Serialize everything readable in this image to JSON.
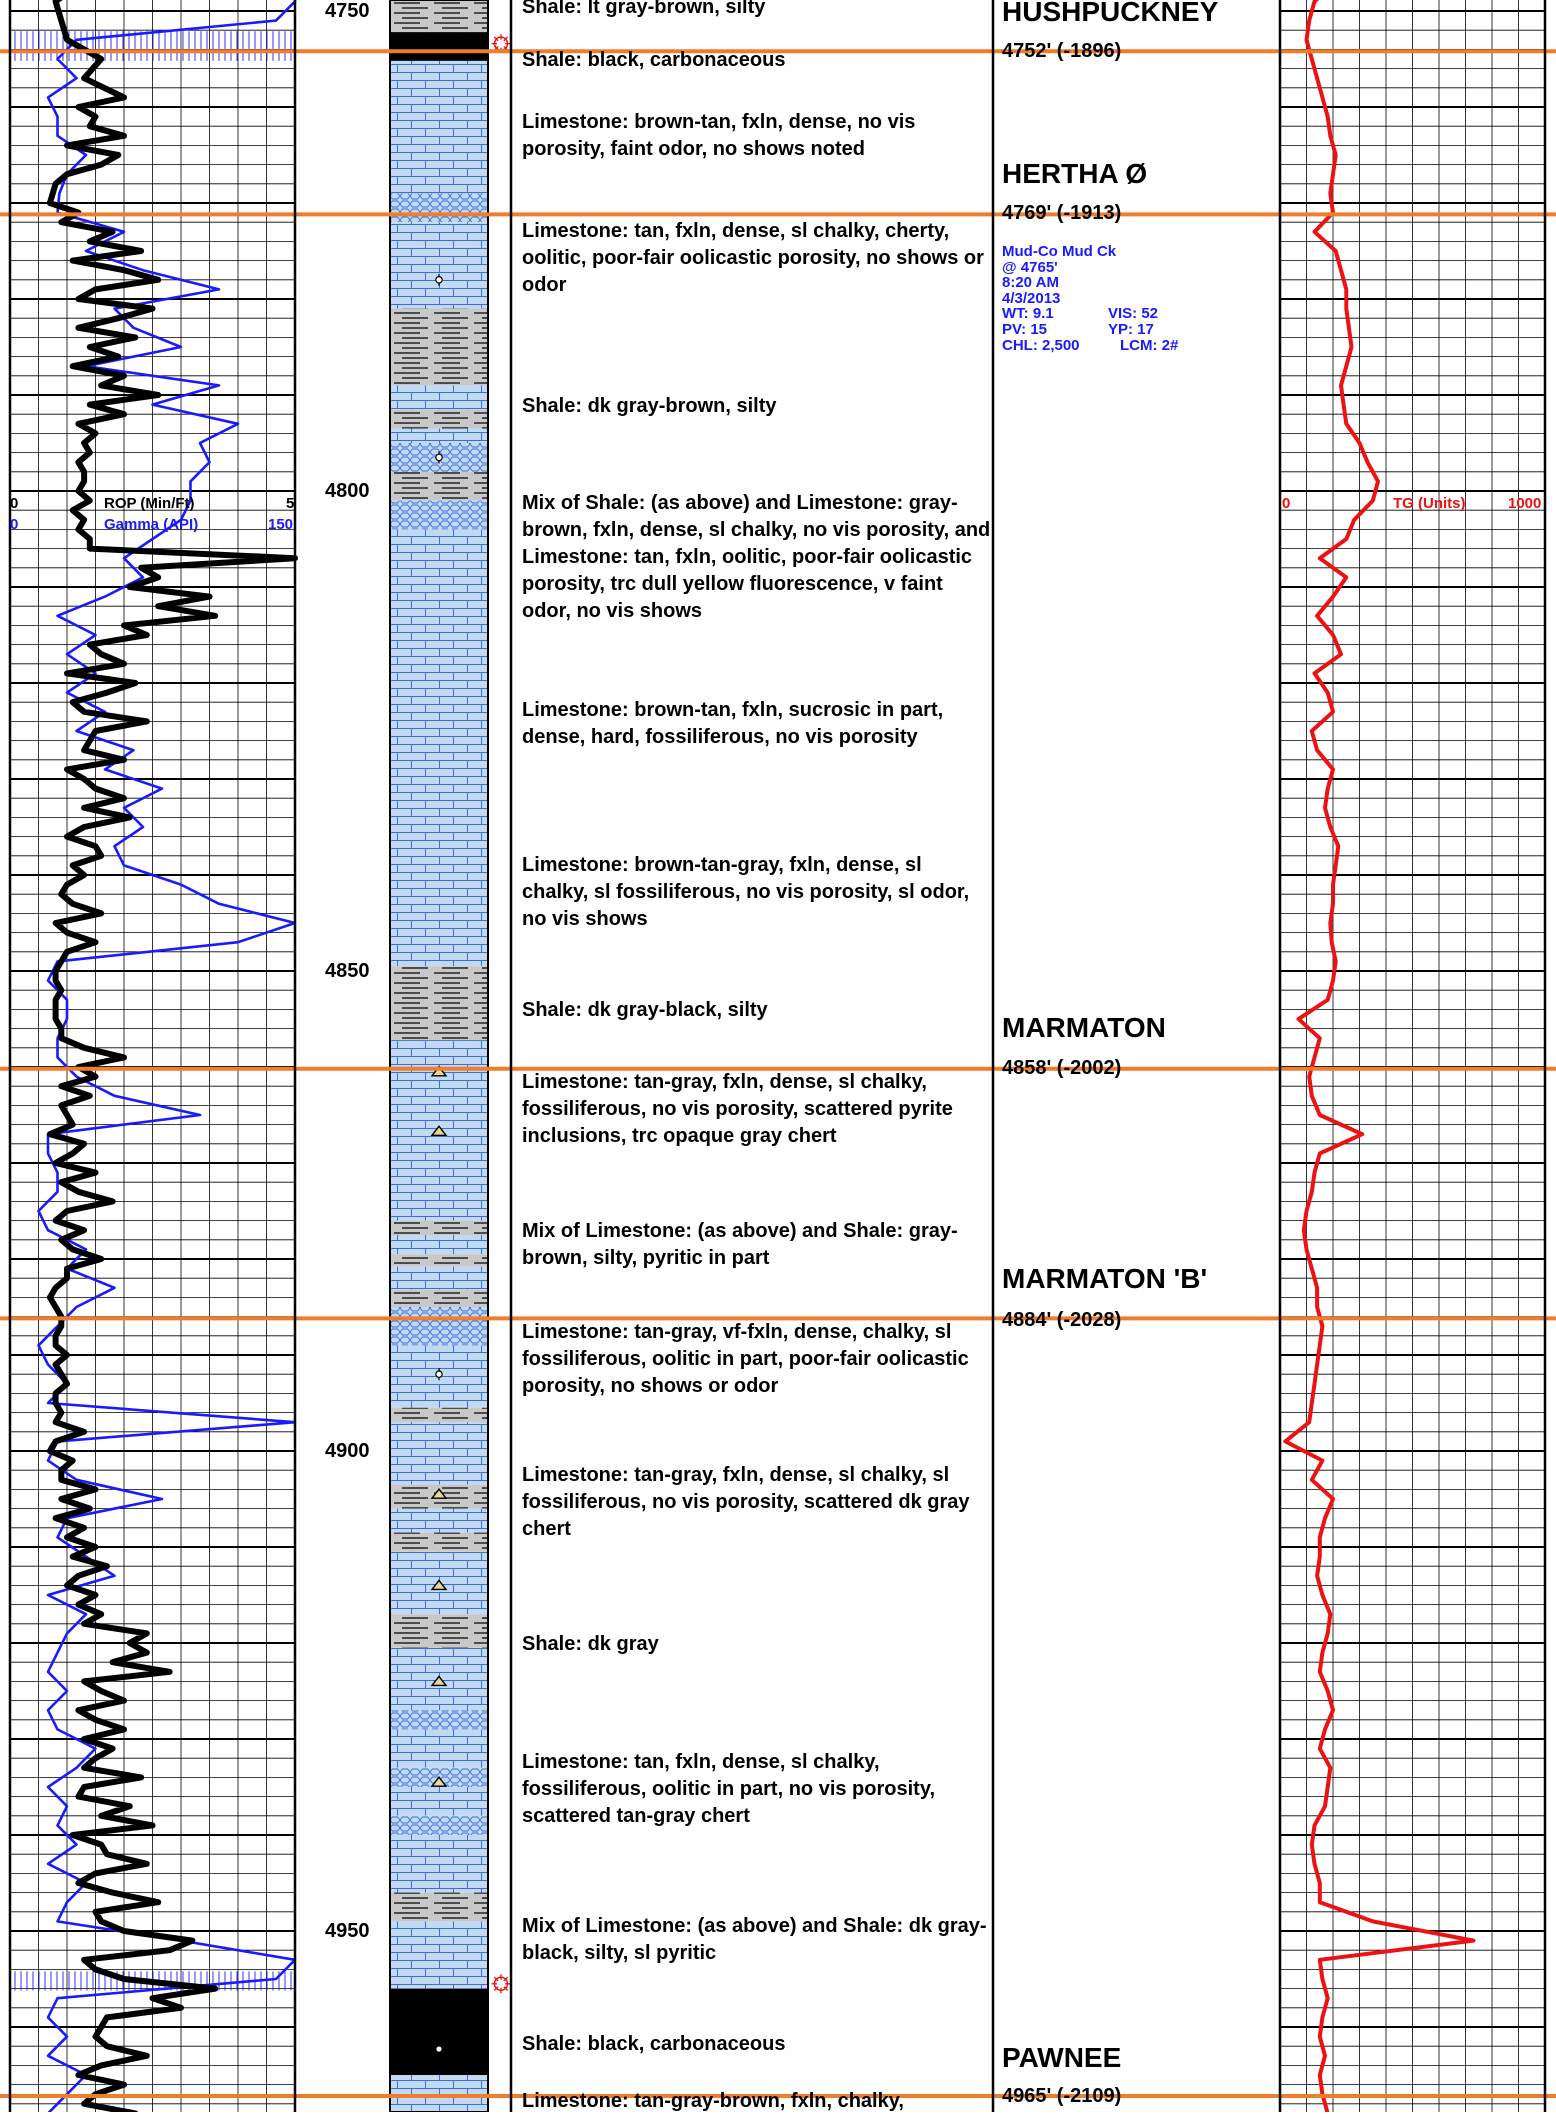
{
  "depth_labels": [
    "4750",
    "4800",
    "4850",
    "4900",
    "4950"
  ],
  "track1_scale": {
    "rop_min": "0",
    "rop_label": "ROP (Min/Ft)",
    "rop_max": "5",
    "gamma_min": "0",
    "gamma_label": "Gamma (API)",
    "gamma_max": "150"
  },
  "track3_scale": {
    "tg_min": "0",
    "tg_label": "TG (Units)",
    "tg_max": "1000"
  },
  "descriptions": [
    "Shale: lt gray-brown, silty",
    "Shale: black, carbonaceous",
    "Limestone: brown-tan, fxln, dense, no vis porosity, faint odor, no shows noted",
    "Limestone: tan, fxln, dense, sl chalky, cherty, oolitic, poor-fair oolicastic porosity, no shows or odor",
    "Shale: dk gray-brown, silty",
    "Mix of Shale: (as above) and Limestone: gray-brown, fxln, dense, sl chalky, no vis porosity, and Limestone: tan, fxln, oolitic, poor-fair oolicastic porosity, trc dull yellow fluorescence, v faint odor, no vis shows",
    "Limestone: brown-tan, fxln, sucrosic in part, dense, hard, fossiliferous, no vis porosity",
    "Limestone: brown-tan-gray, fxln, dense, sl chalky, sl fossiliferous, no vis porosity, sl odor, no vis shows",
    "Shale: dk gray-black, silty",
    "Limestone: tan-gray, fxln, dense, sl chalky, fossiliferous, no vis porosity, scattered pyrite inclusions, trc opaque gray chert",
    "Mix of Limestone: (as above) and Shale: gray-brown, silty, pyritic in part",
    "Limestone: tan-gray, vf-fxln, dense, chalky, sl fossiliferous, oolitic in part, poor-fair oolicastic porosity, no shows or odor",
    "Limestone: tan-gray, fxln, dense, sl chalky, sl fossiliferous, no vis porosity, scattered dk gray chert",
    "Shale: dk gray",
    "Limestone: tan, fxln, dense, sl chalky, fossiliferous, oolitic in part, no vis porosity, scattered tan-gray chert",
    "Mix of Limestone: (as above) and Shale: dk gray-black, silty, sl pyritic",
    "Shale: black, carbonaceous",
    "Limestone: tan-gray-brown, fxln, chalky,"
  ],
  "formations": [
    {
      "name": "HUSHPUCKNEY",
      "top": ""
    },
    {
      "name": "HERTHA Ø",
      "top": "4752' (-1896)"
    },
    {
      "name": "MARMATON",
      "top": "4769' (-1913)"
    },
    {
      "name": "MARMATON 'B'",
      "top": "4858' (-2002)"
    },
    {
      "name": "PAWNEE",
      "top": "4884' (-2028)"
    },
    {
      "name": "",
      "top": "4965' (-2109)"
    }
  ],
  "mud_check": {
    "company": "Mud-Co Mud Ck",
    "depth": "@ 4765'",
    "time": "8:20 AM",
    "date": "4/3/2013",
    "wt": "WT: 9.1",
    "vis": "VIS: 52",
    "pv": "PV: 15",
    "yp": "YP: 17",
    "chl": "CHL: 2,500",
    "lcm": "LCM: 2#"
  },
  "colors": {
    "formation_line": "#f07d2a",
    "rop": "#000000",
    "gamma": "#1a1aff",
    "gas": "#ee1111",
    "limestone": "#c2d9f2",
    "shale": "#c8c8c8",
    "black_shale": "#000000"
  },
  "chart_data": {
    "type": "line",
    "depth_axis": {
      "top": 4747.3,
      "bottom": 4969.0,
      "unit": "ft"
    },
    "series": [
      {
        "name": "ROP (Min/Ft)",
        "range": [
          0,
          5
        ],
        "depth": [
          4747.3,
          4749,
          4751,
          4753,
          4755,
          4757,
          4759,
          4760,
          4761,
          4762,
          4763,
          4764,
          4765,
          4766,
          4767,
          4768,
          4770,
          4771,
          4772,
          4773,
          4774,
          4775,
          4776,
          4777,
          4778,
          4779,
          4780,
          4781,
          4782,
          4783,
          4784,
          4785,
          4786,
          4787,
          4788,
          4789,
          4790,
          4791,
          4792,
          4793,
          4794,
          4795,
          4796,
          4797,
          4798,
          4799,
          4800,
          4801,
          4802,
          4803,
          4804,
          4805,
          4806,
          4807,
          4808,
          4809,
          4810,
          4811,
          4812,
          4813,
          4814,
          4815,
          4816,
          4817,
          4818,
          4819,
          4820,
          4821,
          4822,
          4823,
          4824,
          4825,
          4826,
          4827,
          4828,
          4829,
          4830,
          4831,
          4832,
          4833,
          4834,
          4835,
          4836,
          4837,
          4838,
          4839,
          4840,
          4841,
          4842,
          4843,
          4844,
          4845,
          4846,
          4847,
          4848,
          4849,
          4850,
          4851,
          4852,
          4853,
          4854,
          4855,
          4856,
          4857,
          4858,
          4859,
          4860,
          4861,
          4862,
          4863,
          4864,
          4865,
          4866,
          4867,
          4868,
          4869,
          4870,
          4871,
          4872,
          4873,
          4874,
          4875,
          4876,
          4877,
          4878,
          4879,
          4880,
          4881,
          4882,
          4883,
          4884,
          4885,
          4886,
          4887,
          4888,
          4889,
          4890,
          4891,
          4892,
          4893,
          4894,
          4895,
          4896,
          4897,
          4898,
          4899,
          4900,
          4901,
          4902,
          4903,
          4904,
          4905,
          4906,
          4907,
          4908,
          4909,
          4910,
          4911,
          4912,
          4913,
          4914,
          4915,
          4916,
          4917,
          4918,
          4919,
          4920,
          4921,
          4922,
          4923,
          4924,
          4925,
          4926,
          4927,
          4928,
          4929,
          4930,
          4931,
          4932,
          4933,
          4934,
          4935,
          4936,
          4937,
          4938,
          4939,
          4940,
          4941,
          4942,
          4943,
          4944,
          4945,
          4946,
          4947,
          4948,
          4949,
          4950,
          4951,
          4952,
          4953,
          4954,
          4955,
          4956,
          4957,
          4958,
          4959,
          4960,
          4961,
          4962,
          4963,
          4964,
          4965,
          4966,
          4967,
          4968,
          4969
        ],
        "values": [
          1.2,
          0.8,
          0.9,
          1.0,
          1.6,
          1.3,
          2.0,
          1.2,
          1.5,
          1.4,
          2.0,
          1.0,
          1.9,
          1.6,
          1.0,
          0.8,
          0.7,
          1.2,
          0.9,
          1.8,
          1.4,
          2.3,
          1.1,
          2.0,
          2.6,
          1.5,
          1.2,
          2.5,
          1.9,
          1.2,
          2.2,
          1.4,
          1.9,
          1.1,
          2.0,
          1.6,
          2.6,
          1.4,
          2.0,
          1.2,
          1.5,
          1.3,
          1.4,
          1.2,
          1.3,
          1.3,
          1.2,
          1.4,
          1.1,
          1.3,
          1.2,
          1.4,
          1.4,
          5.0,
          2.3,
          2.6,
          2.1,
          3.5,
          2.6,
          3.6,
          2.0,
          2.4,
          1.4,
          1.6,
          2.0,
          1.0,
          2.2,
          1.7,
          1.1,
          1.3,
          2.4,
          1.5,
          1.4,
          1.3,
          2.0,
          1.0,
          1.3,
          1.5,
          2.0,
          1.3,
          2.1,
          1.3,
          1.0,
          1.5,
          1.6,
          1.1,
          1.3,
          1.0,
          0.9,
          1.1,
          1.6,
          0.8,
          1.0,
          1.5,
          1.0,
          0.9,
          0.8,
          0.8,
          0.9,
          0.8,
          0.8,
          0.8,
          0.9,
          0.9,
          1.3,
          2.0,
          1.2,
          1.5,
          0.9,
          1.4,
          0.9,
          1.0,
          1.1,
          0.7,
          1.3,
          1.1,
          0.8,
          1.5,
          0.9,
          1.2,
          1.8,
          1.0,
          0.8,
          1.3,
          0.9,
          1.1,
          1.6,
          1.0,
          1.0,
          0.8,
          0.7,
          0.8,
          0.9,
          0.9,
          0.8,
          0.8,
          1.0,
          0.8,
          0.9,
          1.0,
          0.8,
          0.8,
          0.9,
          0.8,
          1.3,
          0.8,
          0.7,
          1.1,
          0.9,
          0.9,
          1.5,
          0.9,
          1.4,
          0.8,
          1.3,
          1.0,
          1.5,
          1.1,
          1.7,
          1.2,
          1.0,
          1.5,
          1.2,
          1.6,
          1.3,
          2.4,
          2.1,
          2.4,
          1.8,
          2.8,
          1.3,
          1.6,
          2.0,
          1.2,
          1.5,
          2.0,
          1.3,
          1.8,
          1.5,
          1.3,
          2.3,
          1.3,
          1.2,
          2.1,
          1.6,
          2.5,
          1.1,
          1.6,
          1.7,
          2.4,
          1.5,
          1.2,
          1.8,
          2.6,
          1.5,
          1.6,
          2.0,
          3.2,
          2.8,
          1.3,
          1.5,
          2.0,
          3.6,
          2.5,
          3.0,
          1.7,
          1.6,
          1.5,
          1.7,
          2.4,
          1.6,
          1.2,
          2.0,
          1.5,
          1.3,
          2.2,
          1.5
        ]
      },
      {
        "name": "Gamma (API)",
        "range": [
          0,
          150
        ],
        "depth": [
          4747.3,
          4749,
          4751,
          4753,
          4755,
          4757,
          4759,
          4761,
          4763,
          4765,
          4767,
          4769,
          4771,
          4773,
          4775,
          4777,
          4779,
          4781,
          4783,
          4785,
          4787,
          4789,
          4791,
          4793,
          4795,
          4797,
          4799,
          4801,
          4803,
          4805,
          4807,
          4809,
          4811,
          4813,
          4815,
          4817,
          4819,
          4821,
          4823,
          4825,
          4827,
          4829,
          4831,
          4833,
          4835,
          4837,
          4839,
          4841,
          4843,
          4845,
          4847,
          4849,
          4851,
          4853,
          4855,
          4857,
          4859,
          4861,
          4863,
          4865,
          4867,
          4869,
          4871,
          4873,
          4875,
          4877,
          4879,
          4881,
          4883,
          4885,
          4887,
          4889,
          4891,
          4893,
          4895,
          4897,
          4899,
          4901,
          4903,
          4905,
          4907,
          4909,
          4911,
          4913,
          4915,
          4917,
          4919,
          4921,
          4923,
          4925,
          4927,
          4929,
          4931,
          4933,
          4935,
          4937,
          4939,
          4941,
          4943,
          4945,
          4947,
          4949,
          4951,
          4953,
          4955,
          4957,
          4959,
          4961,
          4963,
          4965,
          4967,
          4969
        ],
        "values": [
          150,
          150,
          140,
          35,
          25,
          35,
          20,
          25,
          25,
          40,
          30,
          26,
          25,
          60,
          40,
          70,
          110,
          55,
          65,
          90,
          40,
          110,
          75,
          120,
          100,
          105,
          95,
          95,
          90,
          75,
          60,
          70,
          50,
          25,
          45,
          30,
          45,
          30,
          50,
          35,
          65,
          50,
          80,
          60,
          70,
          55,
          60,
          90,
          110,
          150,
          120,
          25,
          20,
          30,
          30,
          25,
          25,
          35,
          55,
          100,
          20,
          20,
          25,
          25,
          15,
          20,
          40,
          30,
          55,
          35,
          25,
          15,
          20,
          30,
          20,
          150,
          25,
          20,
          35,
          80,
          30,
          25,
          40,
          55,
          20,
          40,
          30,
          25,
          20,
          30,
          20,
          25,
          45,
          35,
          20,
          30,
          25,
          35,
          20,
          40,
          30,
          25,
          90,
          150,
          140,
          25,
          20,
          30,
          20,
          40,
          30,
          20
        ]
      },
      {
        "name": "TG (Units)",
        "range": [
          0,
          1000
        ],
        "depth": [
          4747.3,
          4749,
          4751,
          4753,
          4755,
          4757,
          4759,
          4761,
          4763,
          4765,
          4767,
          4769,
          4771,
          4773,
          4775,
          4777,
          4779,
          4781,
          4783,
          4785,
          4787,
          4789,
          4791,
          4793,
          4795,
          4797,
          4799,
          4801,
          4803,
          4805,
          4807,
          4809,
          4811,
          4813,
          4815,
          4817,
          4819,
          4821,
          4823,
          4825,
          4827,
          4829,
          4831,
          4833,
          4835,
          4837,
          4839,
          4841,
          4843,
          4845,
          4847,
          4849,
          4851,
          4853,
          4855,
          4857,
          4859,
          4861,
          4863,
          4865,
          4867,
          4869,
          4871,
          4873,
          4875,
          4877,
          4879,
          4881,
          4883,
          4885,
          4887,
          4889,
          4891,
          4893,
          4895,
          4897,
          4899,
          4901,
          4903,
          4905,
          4907,
          4909,
          4911,
          4913,
          4915,
          4917,
          4919,
          4921,
          4923,
          4925,
          4927,
          4929,
          4931,
          4933,
          4935,
          4937,
          4939,
          4941,
          4943,
          4945,
          4947,
          4949,
          4951,
          4953,
          4955,
          4957,
          4959,
          4961,
          4963,
          4965,
          4967,
          4969
        ],
        "values": [
          200,
          130,
          110,
          100,
          120,
          140,
          160,
          180,
          190,
          210,
          200,
          190,
          200,
          130,
          210,
          230,
          250,
          250,
          260,
          270,
          250,
          230,
          240,
          250,
          300,
          330,
          370,
          350,
          280,
          250,
          150,
          250,
          200,
          140,
          200,
          230,
          130,
          180,
          200,
          120,
          140,
          200,
          180,
          170,
          190,
          220,
          210,
          200,
          200,
          190,
          195,
          210,
          200,
          180,
          70,
          150,
          130,
          110,
          120,
          150,
          310,
          150,
          130,
          120,
          100,
          90,
          100,
          120,
          140,
          140,
          160,
          150,
          140,
          130,
          120,
          110,
          20,
          160,
          120,
          200,
          170,
          150,
          150,
          140,
          160,
          190,
          180,
          160,
          150,
          180,
          200,
          170,
          150,
          190,
          180,
          170,
          130,
          120,
          130,
          150,
          150,
          350,
          730,
          150,
          160,
          180,
          160,
          150,
          170,
          150,
          160,
          180
        ]
      }
    ]
  }
}
